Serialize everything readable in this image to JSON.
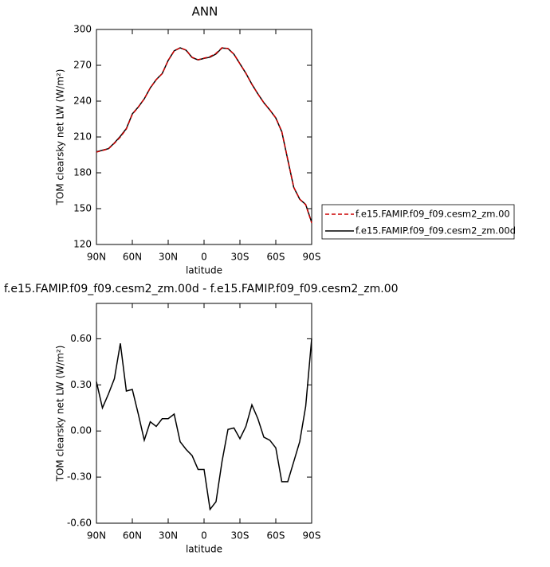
{
  "chart_data": [
    {
      "type": "line",
      "title": "ANN",
      "xlabel": "latitude",
      "ylabel": "TOM clearsky net LW (W/m²)",
      "x": [
        90,
        85,
        80,
        75,
        70,
        65,
        60,
        55,
        50,
        45,
        40,
        35,
        30,
        25,
        20,
        15,
        10,
        5,
        0,
        -5,
        -10,
        -15,
        -20,
        -25,
        -30,
        -35,
        -40,
        -45,
        -50,
        -55,
        -60,
        -65,
        -70,
        -75,
        -80,
        -85,
        -90
      ],
      "xlim": [
        90,
        -90
      ],
      "xticks": [
        {
          "value": 90,
          "label": "90N"
        },
        {
          "value": 60,
          "label": "60N"
        },
        {
          "value": 30,
          "label": "30N"
        },
        0,
        {
          "value": -30,
          "label": "30S"
        },
        {
          "value": -60,
          "label": "60S"
        },
        {
          "value": -90,
          "label": "90S"
        }
      ],
      "ylim": [
        120,
        300
      ],
      "yticks": [
        300,
        270,
        240,
        210,
        180,
        150,
        120
      ],
      "legend": "right",
      "series": [
        {
          "name": "f.e15.FAMIP.f09_f09.cesm2_zm.00",
          "color": "#cc0000",
          "line_style": "dashed",
          "values": [
            197.3,
            198.7,
            200,
            204.7,
            210,
            216.7,
            229,
            235,
            242,
            251,
            258,
            263,
            274,
            282,
            284.7,
            282.7,
            276.7,
            274.7,
            276,
            277.3,
            280,
            284.7,
            284,
            279.3,
            271.3,
            263.3,
            254,
            246,
            238.7,
            232.7,
            226,
            214.7,
            191.3,
            168,
            158,
            153.3,
            138
          ]
        },
        {
          "name": "f.e15.FAMIP.f09_f09.cesm2_zm.00d",
          "color": "#000000",
          "line_style": "solid",
          "values": [
            197.6,
            198.9,
            200.2,
            205,
            210.6,
            217,
            229.3,
            235.1,
            241.9,
            251.1,
            258,
            263.1,
            274.1,
            282.1,
            284.6,
            282.6,
            276.5,
            274.5,
            275.8,
            276.8,
            279.5,
            284.5,
            284,
            279.3,
            271.3,
            263.3,
            254.2,
            246.1,
            238.7,
            232.6,
            225.9,
            214.4,
            191,
            167.8,
            157.9,
            153.5,
            138.6
          ]
        }
      ]
    },
    {
      "type": "line",
      "title": "f.e15.FAMIP.f09_f09.cesm2_zm.00d - f.e15.FAMIP.f09_f09.cesm2_zm.00",
      "xlabel": "latitude",
      "ylabel": "TOM clearsky net LW (W/m²)",
      "x": [
        90,
        85,
        80,
        75,
        70,
        65,
        60,
        55,
        50,
        45,
        40,
        35,
        30,
        25,
        20,
        15,
        10,
        5,
        0,
        -5,
        -10,
        -15,
        -20,
        -25,
        -30,
        -35,
        -40,
        -45,
        -50,
        -55,
        -60,
        -65,
        -70,
        -75,
        -80,
        -85,
        -90
      ],
      "xlim": [
        90,
        -90
      ],
      "xticks": [
        {
          "value": 90,
          "label": "90N"
        },
        {
          "value": 60,
          "label": "60N"
        },
        {
          "value": 30,
          "label": "30N"
        },
        0,
        {
          "value": -30,
          "label": "30S"
        },
        {
          "value": -60,
          "label": "60S"
        },
        {
          "value": -90,
          "label": "90S"
        }
      ],
      "ylim": [
        -0.6,
        0.83
      ],
      "yticks": [
        {
          "value": 0.6,
          "label": "0.60"
        },
        {
          "value": 0.3,
          "label": "0.30"
        },
        {
          "value": 0,
          "label": "0.00"
        },
        {
          "value": -0.3,
          "label": "-0.30"
        },
        {
          "value": -0.6,
          "label": "-0.60"
        }
      ],
      "series": [
        {
          "color": "#000000",
          "line_style": "solid",
          "values": [
            0.32,
            0.15,
            0.24,
            0.34,
            0.57,
            0.26,
            0.27,
            0.11,
            -0.06,
            0.06,
            0.03,
            0.08,
            0.08,
            0.11,
            -0.07,
            -0.12,
            -0.16,
            -0.25,
            -0.25,
            -0.51,
            -0.46,
            -0.2,
            0.01,
            0.02,
            -0.05,
            0.03,
            0.17,
            0.08,
            -0.04,
            -0.06,
            -0.11,
            -0.33,
            -0.33,
            -0.2,
            -0.07,
            0.16,
            0.6
          ]
        }
      ]
    }
  ]
}
